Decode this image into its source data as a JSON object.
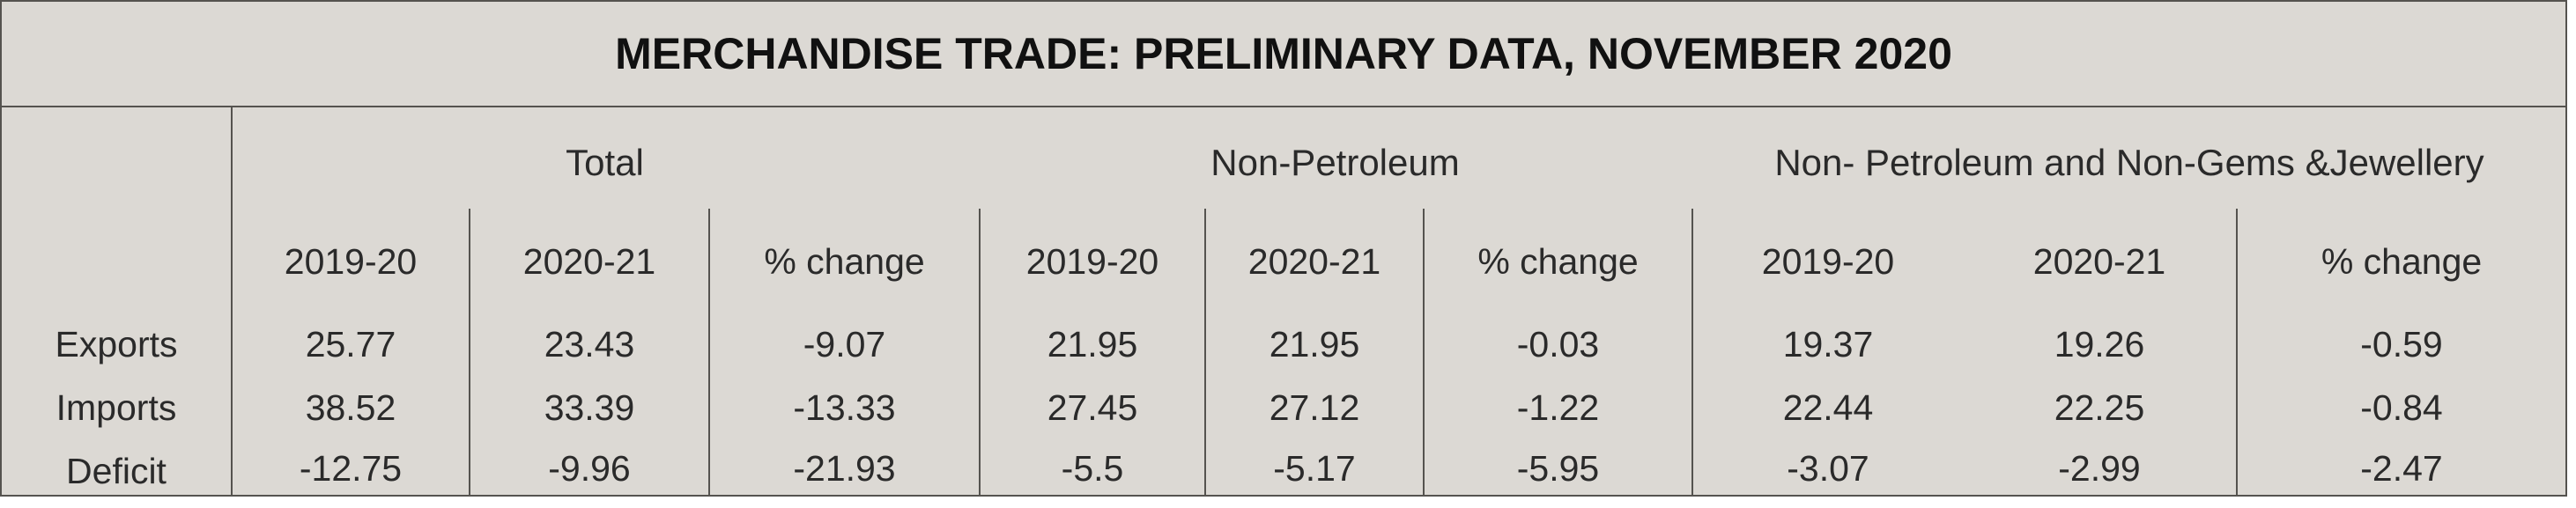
{
  "title": "MERCHANDISE TRADE: PRELIMINARY DATA, NOVEMBER 2020",
  "groups": [
    {
      "label": "Total"
    },
    {
      "label": "Non-Petroleum"
    },
    {
      "label": "Non- Petroleum and Non-Gems &Jewellery"
    }
  ],
  "subheaders": [
    "2019-20",
    "2020-21",
    "% change",
    "2019-20",
    "2020-21",
    "% change",
    "2019-20",
    "2020-21",
    "% change"
  ],
  "rows": [
    {
      "label": "Exports",
      "values": [
        "25.77",
        "23.43",
        "-9.07",
        "21.95",
        "21.95",
        "-0.03",
        "19.37",
        "19.26",
        "-0.59"
      ]
    },
    {
      "label": "Imports",
      "values": [
        "38.52",
        "33.39",
        "-13.33",
        "27.45",
        "27.12",
        "-1.22",
        "22.44",
        "22.25",
        "-0.84"
      ]
    },
    {
      "label": "Deficit",
      "values": [
        "-12.75",
        "-9.96",
        "-21.93",
        "-5.5",
        "-5.17",
        "-5.95",
        "-3.07",
        "-2.99",
        "-2.47"
      ]
    }
  ]
}
